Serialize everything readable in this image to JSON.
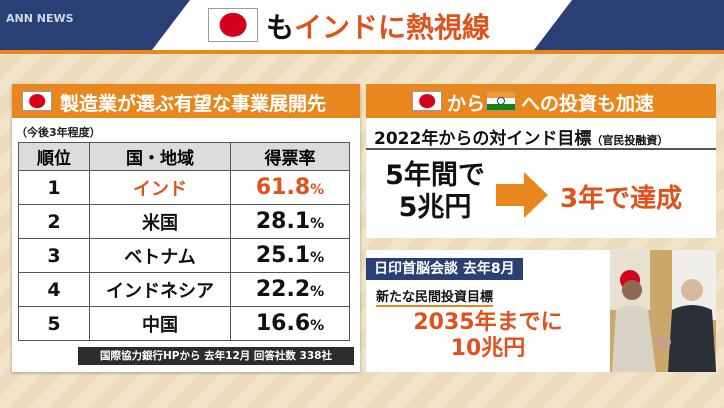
{
  "logo": "ANN NEWS",
  "title": {
    "particle": "も",
    "main": "インドに熱視線"
  },
  "left_panel": {
    "header": "製造業が選ぶ有望な事業展開先",
    "note": "（今後3年程度）",
    "table": {
      "columns": [
        "順位",
        "国・地域",
        "得票率"
      ],
      "rows": [
        [
          "1",
          "インド",
          {
            "value": "61.8",
            "unit": "%"
          }
        ],
        [
          "2",
          "米国",
          {
            "value": "28.1",
            "unit": "%"
          }
        ],
        [
          "3",
          "ベトナム",
          {
            "value": "25.1",
            "unit": "%"
          }
        ],
        [
          "4",
          "インドネシア",
          {
            "value": "22.2",
            "unit": "%"
          }
        ],
        [
          "5",
          "中国",
          {
            "value": "16.6",
            "unit": "%"
          }
        ]
      ]
    },
    "source": "国際協力銀行HPから 去年12月 回答社数 338社"
  },
  "right_top": {
    "header_from": "から",
    "header_rest": "への投資も加速",
    "goal_title": "2022年からの対インド目標",
    "goal_note": "（官民投融資）",
    "plan_line1": "5年間で",
    "plan_line2": "5兆円",
    "result": "3年で達成"
  },
  "right_bottom": {
    "tag": "日印首脳会談 去年8月",
    "subtitle": "新たな民間投資目標",
    "line1": "2035年までに",
    "line2": "10兆円"
  }
}
